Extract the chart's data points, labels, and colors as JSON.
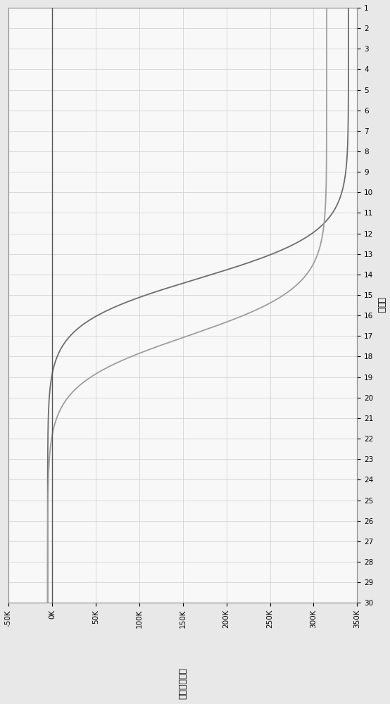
{
  "cycle_min": 1,
  "cycle_max": 30,
  "fluor_min": -50000,
  "fluor_max": 350000,
  "fluor_ticks": [
    -50000,
    0,
    50000,
    100000,
    150000,
    200000,
    250000,
    300000,
    350000
  ],
  "fluor_tick_labels": [
    "-50K",
    "0K",
    "50K",
    "100K",
    "150K",
    "200K",
    "250K",
    "300K",
    "350K"
  ],
  "cycle_ticks": [
    1,
    2,
    3,
    4,
    5,
    6,
    7,
    8,
    9,
    10,
    11,
    12,
    13,
    14,
    15,
    16,
    17,
    18,
    19,
    20,
    21,
    22,
    23,
    24,
    25,
    26,
    27,
    28,
    29,
    30
  ],
  "line_color_1": "#6e6e6e",
  "line_color_2": "#9e9e9e",
  "grid_color": "#cccccc",
  "bg_color": "#e8e8e8",
  "plot_bg_color": "#f8f8f8",
  "curve1_inflection": 14.2,
  "curve1_steepness": 0.9,
  "curve1_max": 340000,
  "curve1_min": -5000,
  "curve2_inflection": 17.0,
  "curve2_steepness": 0.85,
  "curve2_max": 315000,
  "curve2_min": -5000,
  "xlabel_text": "循环数",
  "ylabel_text": "相对荧光强度",
  "baseline_x": 0,
  "baseline_color": "#555555",
  "baseline_lw": 1.0
}
